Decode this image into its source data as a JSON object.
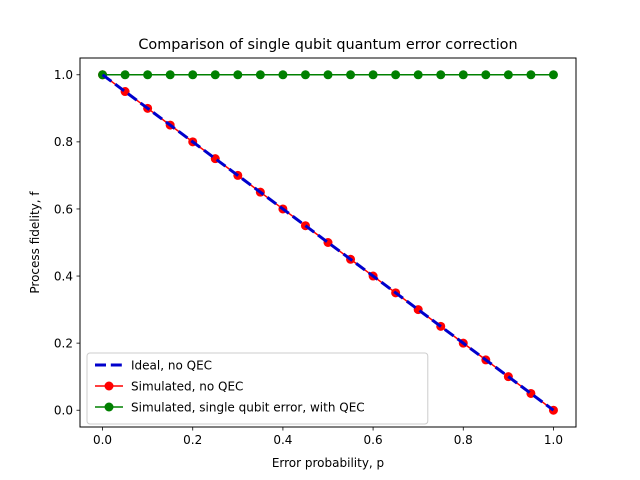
{
  "chart_data": {
    "type": "line",
    "title": "Comparison of single qubit quantum error correction",
    "xlabel": "Error probability, p",
    "ylabel": "Process fidelity, f",
    "xlim": [
      -0.05,
      1.05
    ],
    "ylim": [
      -0.05,
      1.05
    ],
    "xticks": [
      "0.0",
      "0.2",
      "0.4",
      "0.6",
      "0.8",
      "1.0"
    ],
    "yticks": [
      "0.0",
      "0.2",
      "0.4",
      "0.6",
      "0.8",
      "1.0"
    ],
    "grid": false,
    "legend_position": "lower-left",
    "x": [
      0.0,
      0.05,
      0.1,
      0.15,
      0.2,
      0.25,
      0.3,
      0.35,
      0.4,
      0.45,
      0.5,
      0.55,
      0.6,
      0.65,
      0.7,
      0.75,
      0.8,
      0.85,
      0.9,
      0.95,
      1.0
    ],
    "series": [
      {
        "name": "Ideal, no QEC",
        "color": "#0000cc",
        "style": "dashed",
        "marker": "none",
        "values": [
          1.0,
          0.95,
          0.9,
          0.85,
          0.8,
          0.75,
          0.7,
          0.65,
          0.6,
          0.55,
          0.5,
          0.45,
          0.4,
          0.35,
          0.3,
          0.25,
          0.2,
          0.15,
          0.1,
          0.05,
          0.0
        ]
      },
      {
        "name": "Simulated, no QEC",
        "color": "#ff0000",
        "style": "solid",
        "marker": "circle",
        "values": [
          1.0,
          0.95,
          0.9,
          0.85,
          0.8,
          0.75,
          0.7,
          0.65,
          0.6,
          0.55,
          0.5,
          0.45,
          0.4,
          0.35,
          0.3,
          0.25,
          0.2,
          0.15,
          0.1,
          0.05,
          0.0
        ]
      },
      {
        "name": "Simulated, single qubit error, with QEC",
        "color": "#008000",
        "style": "solid",
        "marker": "circle",
        "values": [
          1.0,
          1.0,
          1.0,
          1.0,
          1.0,
          1.0,
          1.0,
          1.0,
          1.0,
          1.0,
          1.0,
          1.0,
          1.0,
          1.0,
          1.0,
          1.0,
          1.0,
          1.0,
          1.0,
          1.0,
          1.0
        ]
      }
    ]
  }
}
